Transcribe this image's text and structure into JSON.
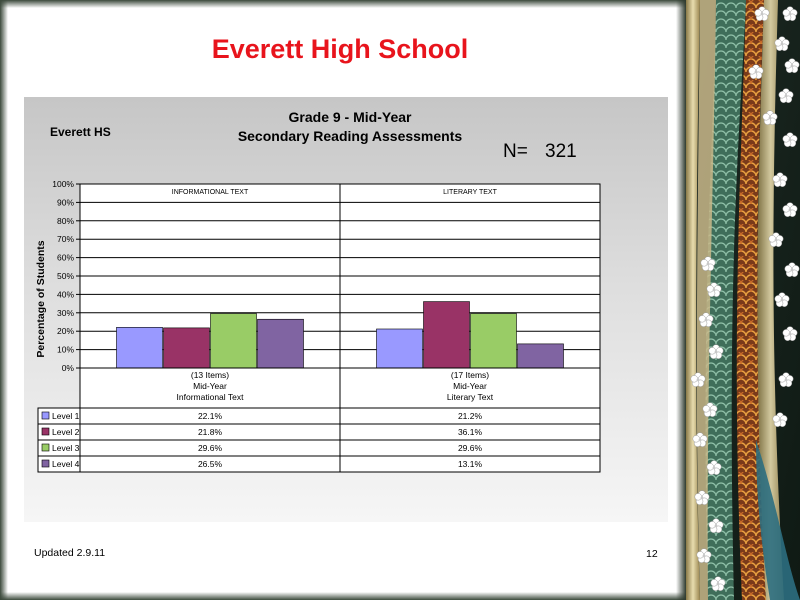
{
  "slide": {
    "title": "Everett High School",
    "updated": "Updated  2.9.11",
    "page_number": "12"
  },
  "chart_data": {
    "type": "bar",
    "title_line1": "Grade 9 - Mid-Year",
    "title_line2": "Secondary Reading Assessments",
    "school": "Everett HS",
    "n_label": "N=",
    "n_value": "321",
    "ylabel": "Percentage of Students",
    "ylim": [
      0,
      100
    ],
    "yticks": [
      "0%",
      "10%",
      "20%",
      "30%",
      "40%",
      "50%",
      "60%",
      "70%",
      "80%",
      "90%",
      "100%"
    ],
    "groups": [
      {
        "header": "INFORMATIONAL TEXT",
        "label_lines": [
          "(13 Items)",
          "Mid-Year",
          "Informational Text"
        ]
      },
      {
        "header": "LITERARY TEXT",
        "label_lines": [
          "(17 Items)",
          "Mid-Year",
          "Literary Text"
        ]
      }
    ],
    "series": [
      {
        "name": "Level 1",
        "color": "#9999ff",
        "values": [
          22.1,
          21.2
        ],
        "labels": [
          "22.1%",
          "21.2%"
        ]
      },
      {
        "name": "Level 2",
        "color": "#993366",
        "values": [
          21.8,
          36.1
        ],
        "labels": [
          "21.8%",
          "36.1%"
        ]
      },
      {
        "name": "Level 3",
        "color": "#99cc66",
        "values": [
          29.6,
          29.6
        ],
        "labels": [
          "29.6%",
          "29.6%"
        ]
      },
      {
        "name": "Level 4",
        "color": "#8064a2",
        "values": [
          26.5,
          13.1
        ],
        "labels": [
          "26.5%",
          "13.1%"
        ]
      }
    ],
    "grid": true,
    "legend": "data-table"
  }
}
